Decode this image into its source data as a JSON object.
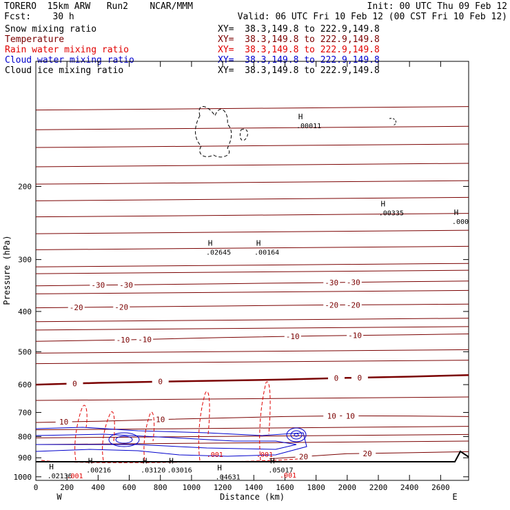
{
  "header": {
    "line1_left": "TORERO  15km ARW   Run2    NCAR/MMM",
    "line1_right": "Init: 00 UTC Thu 09 Feb 12",
    "line2_left": "Fcst:    30 h",
    "line2_right": "Valid: 06 UTC Fri 10 Feb 12 (00 CST Fri 10 Feb 12)"
  },
  "fields": [
    {
      "label": "Snow mixing ratio",
      "xy": "XY=  38.3,149.8 to 222.9,149.8",
      "color": "#000000"
    },
    {
      "label": "Temperature",
      "xy": "XY=  38.3,149.8 to 222.9,149.8",
      "color": "#7a0000"
    },
    {
      "label": "Rain water mixing ratio",
      "xy": "XY=  38.3,149.8 to 222.9,149.8",
      "color": "#e00000"
    },
    {
      "label": "Cloud water mixing ratio",
      "xy": "XY=  38.3,149.8 to 222.9,149.8",
      "color": "#0000cc"
    },
    {
      "label": "Cloud ice mixing ratio",
      "xy": "XY=  38.3,149.8 to 222.9,149.8",
      "color": "#000000"
    }
  ],
  "chart_data": {
    "type": "contour-cross-section",
    "xlabel": "Distance (km)",
    "ylabel": "Pressure (hPa)",
    "xlim": [
      0,
      2780
    ],
    "ylim": [
      1020,
      100
    ],
    "xticks": [
      0,
      200,
      400,
      600,
      800,
      1000,
      1200,
      1400,
      1600,
      1800,
      2000,
      2200,
      2400,
      2600
    ],
    "yticks": [
      200,
      300,
      400,
      500,
      600,
      700,
      800,
      900,
      1000
    ],
    "x_end_labels": {
      "left": "W",
      "right": "E"
    },
    "temperature_isotherms": [
      {
        "label": "-30",
        "points": [
          [
            0,
            347
          ],
          [
            600,
            345
          ],
          [
            1200,
            343
          ],
          [
            1800,
            341
          ],
          [
            2400,
            339
          ],
          [
            2780,
            338
          ]
        ],
        "labels_at": [
          400,
          580,
          1900,
          2040
        ]
      },
      {
        "label": "-20",
        "points": [
          [
            0,
            392
          ],
          [
            600,
            390
          ],
          [
            1200,
            388
          ],
          [
            1800,
            386
          ],
          [
            2400,
            385
          ],
          [
            2780,
            384
          ]
        ],
        "labels_at": [
          260,
          550,
          1900,
          2040
        ]
      },
      {
        "label": "-10",
        "points": [
          [
            0,
            472
          ],
          [
            600,
            468
          ],
          [
            1200,
            462
          ],
          [
            1800,
            458
          ],
          [
            2400,
            455
          ],
          [
            2780,
            453
          ]
        ],
        "labels_at": [
          560,
          700,
          1650,
          2050
        ]
      },
      {
        "label": "0",
        "points": [
          [
            0,
            600
          ],
          [
            400,
            594
          ],
          [
            800,
            590
          ],
          [
            1200,
            587
          ],
          [
            1600,
            583
          ],
          [
            2000,
            578
          ],
          [
            2400,
            574
          ],
          [
            2780,
            569
          ]
        ],
        "labels_at": [
          250,
          800,
          1930,
          2080
        ]
      },
      {
        "label": "10",
        "points": [
          [
            0,
            740
          ],
          [
            400,
            735
          ],
          [
            800,
            728
          ],
          [
            1200,
            722
          ],
          [
            1600,
            716
          ],
          [
            2000,
            713
          ],
          [
            2400,
            714
          ],
          [
            2780,
            716
          ]
        ],
        "labels_at": [
          180,
          800,
          1900,
          2020
        ]
      },
      {
        "label": "20",
        "points": [
          [
            1500,
            905
          ],
          [
            1800,
            890
          ],
          [
            2000,
            880
          ],
          [
            2400,
            875
          ],
          [
            2780,
            870
          ]
        ],
        "labels_at": [
          1720,
          2130
        ]
      }
    ],
    "extrema_labels": [
      {
        "symbol": "H",
        "value": ".00011",
        "x": 1700,
        "p": 140
      },
      {
        "symbol": "H",
        "value": ".00335",
        "x": 2230,
        "p": 227
      },
      {
        "symbol": "H",
        "value": ".000",
        "x": 2700,
        "p": 238
      },
      {
        "symbol": "H",
        "value": ".02645",
        "x": 1120,
        "p": 282
      },
      {
        "symbol": "H",
        "value": ".00164",
        "x": 1430,
        "p": 282
      },
      {
        "symbol": "H",
        "value": ".00216",
        "x": 350,
        "p": 944
      },
      {
        "symbol": "H",
        "value": ".03120",
        "x": 700,
        "p": 944
      },
      {
        "symbol": "H",
        "value": ".03016",
        "x": 870,
        "p": 944
      },
      {
        "symbol": "H",
        "value": ".04631",
        "x": 1180,
        "p": 980
      },
      {
        "symbol": "H",
        "value": ".05017",
        "x": 1520,
        "p": 944
      },
      {
        "symbol": "H",
        "value": ".02136",
        "x": 100,
        "p": 975
      }
    ],
    "rain_labels": [
      {
        "value": ".001",
        "x": 1150,
        "p": 895
      },
      {
        "value": ".001",
        "x": 1470,
        "p": 895
      },
      {
        "value": ".001",
        "x": 250,
        "p": 1008
      },
      {
        "value": ".001",
        "x": 1620,
        "p": 1005
      }
    ]
  }
}
